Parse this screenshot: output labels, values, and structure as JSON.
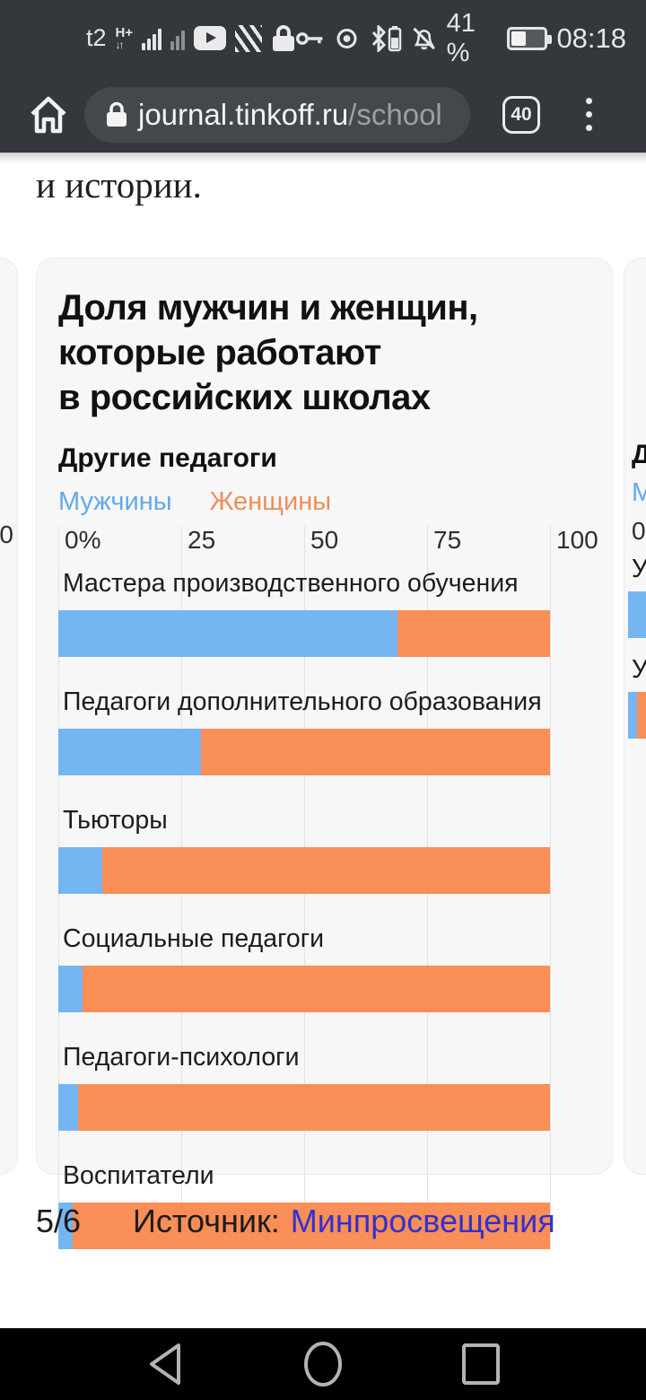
{
  "status_bar": {
    "carrier": "t2",
    "network_type": "H+",
    "network_arrows": "↓↑",
    "battery_percent": "41 %",
    "time": "08:18"
  },
  "browser": {
    "url_host": "journal.tinkoff.ru",
    "url_path": "/school",
    "tab_count": "40"
  },
  "page": {
    "body_text": "и истории.",
    "slide_counter": "5/6",
    "source_label": "Источник:",
    "source_link": "Минпросвещения"
  },
  "chart_data": {
    "type": "bar",
    "orientation": "horizontal",
    "stacked": true,
    "title": "Доля мужчин и женщин, которые работают в российских школах",
    "title_lines": [
      "Доля мужчин и женщин,",
      "которые работают",
      "в российских школах"
    ],
    "subtitle": "Другие педагоги",
    "legend_position": "top",
    "grid": true,
    "x_range": [
      0,
      100
    ],
    "x_ticks": [
      {
        "label": "0%",
        "pos": 0
      },
      {
        "label": "25",
        "pos": 25
      },
      {
        "label": "50",
        "pos": 50
      },
      {
        "label": "75",
        "pos": 75
      },
      {
        "label": "100",
        "pos": 100
      }
    ],
    "categories": [
      "Мастера производственного обучения",
      "Педагоги дополнительного образования",
      "Тьюторы",
      "Социальные педагоги",
      "Педагоги-психологи",
      "Воспитатели"
    ],
    "series": [
      {
        "name": "Мужчины",
        "key": "men",
        "color": "#75b5f1",
        "text_color": "#64a9e9",
        "values": [
          69,
          29,
          9,
          5,
          4,
          3
        ]
      },
      {
        "name": "Женщины",
        "key": "women",
        "color": "#f98e57",
        "text_color": "#ef8f57",
        "values": [
          31,
          71,
          91,
          95,
          96,
          97
        ]
      }
    ]
  },
  "neighbor_cards": {
    "prev": {
      "axis_fragment": "0"
    },
    "next": {
      "subtitle_fragment": "Д",
      "legend_fragment": "М",
      "axis_fragment": "0",
      "label1_fragment": "У",
      "label2_fragment": "У",
      "bar1_color": "#75b5f1",
      "bar2_blue_width": 10,
      "bar2_blue": "#75b5f1",
      "bar2_orange": "#f98e57"
    }
  },
  "colors": {
    "grid_line": "#e2e2e3"
  }
}
